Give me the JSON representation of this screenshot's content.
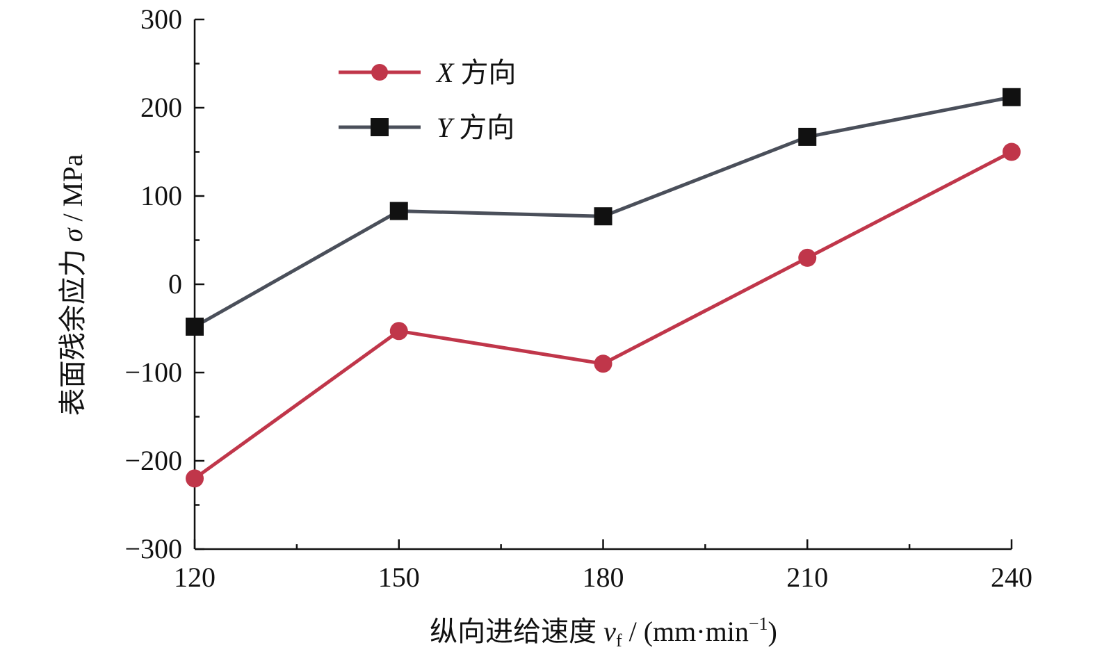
{
  "chart_data": {
    "type": "line",
    "x": [
      120,
      150,
      180,
      210,
      240
    ],
    "xticks": [
      "120",
      "150",
      "180",
      "210",
      "240"
    ],
    "yticks": [
      "300",
      "200",
      "100",
      "0",
      "−100",
      "−200",
      "−300"
    ],
    "ylim": [
      -300,
      300
    ],
    "xlim": [
      120,
      240
    ],
    "xlabel": {
      "main": "纵向进给速度 ",
      "var": "v",
      "sub": "f",
      "unit_open": " / (mm·min",
      "sup": "−1",
      "unit_close": ")"
    },
    "ylabel": {
      "main": "表面残余应力 ",
      "var": "σ",
      "unit": " / MPa"
    },
    "legend_position": "top-left",
    "grid": false,
    "series": [
      {
        "name": "X",
        "name_suffix": " 方向",
        "marker": "circle",
        "color": "#c0364a",
        "values": [
          -220,
          -53,
          -90,
          30,
          150
        ]
      },
      {
        "name": "Y",
        "name_suffix": " 方向",
        "marker": "square",
        "color": "#4a4f5a",
        "values": [
          -48,
          83,
          77,
          167,
          212
        ]
      }
    ]
  }
}
